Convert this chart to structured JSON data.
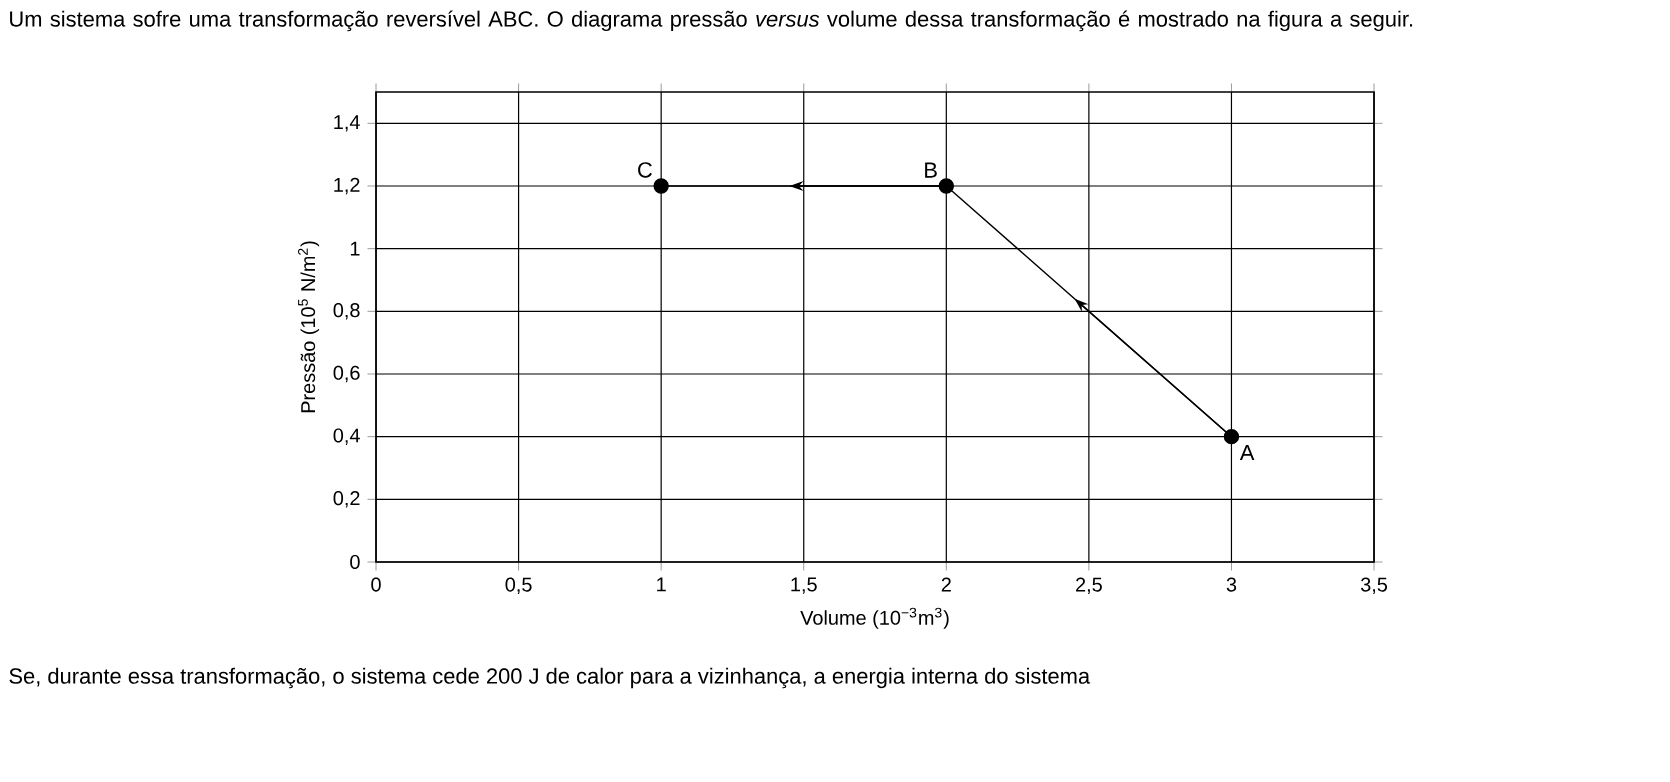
{
  "chart_data": {
    "type": "line",
    "title": "Um sistema sofre uma transformação reversível ABC. O diagrama pressão *versus* volume dessa transformação é mostrado na figura a seguir.",
    "xlabel": "Volume (10$^{−3}$m$^{3}$)",
    "ylabel": "Pressão (10$^{5}$ N/m$^{2}$)",
    "x": [
      3,
      2,
      1
    ],
    "series": [
      {
        "color": "#000000",
        "values": [
          0.4,
          1.2,
          1.2
        ]
      }
    ],
    "xlim": [
      0,
      3.5
    ],
    "ylim": [
      0,
      1.5
    ],
    "xticks": [
      0,
      {
        "value": 0.5,
        "label": "0,5"
      },
      1,
      {
        "value": 1.5,
        "label": "1,5"
      },
      2,
      {
        "value": 2.5,
        "label": "2,5"
      },
      3,
      {
        "value": 3.5,
        "label": "3,5"
      }
    ],
    "yticks": [
      0,
      {
        "value": 0.2,
        "label": "0,2"
      },
      {
        "value": 0.4,
        "label": "0,4"
      },
      {
        "value": 0.6,
        "label": "0,6"
      },
      {
        "value": 0.8,
        "label": "0,8"
      },
      1,
      {
        "value": 1.2,
        "label": "1,2"
      },
      {
        "value": 1.4,
        "label": "1,4"
      }
    ],
    "grid": true,
    "marker": "circle",
    "line_style": "solid",
    "annotations": [
      {
        "text": "A",
        "x": 3,
        "y": 0.4
      },
      {
        "text": "B",
        "x": 2,
        "y": 1.2
      },
      {
        "text": "C",
        "x": 1,
        "y": 1.2
      },
      "Se, durante essa transformação, o sistema cede 200 J de calor para a vizinhança, a energia interna do sistema"
    ]
  }
}
